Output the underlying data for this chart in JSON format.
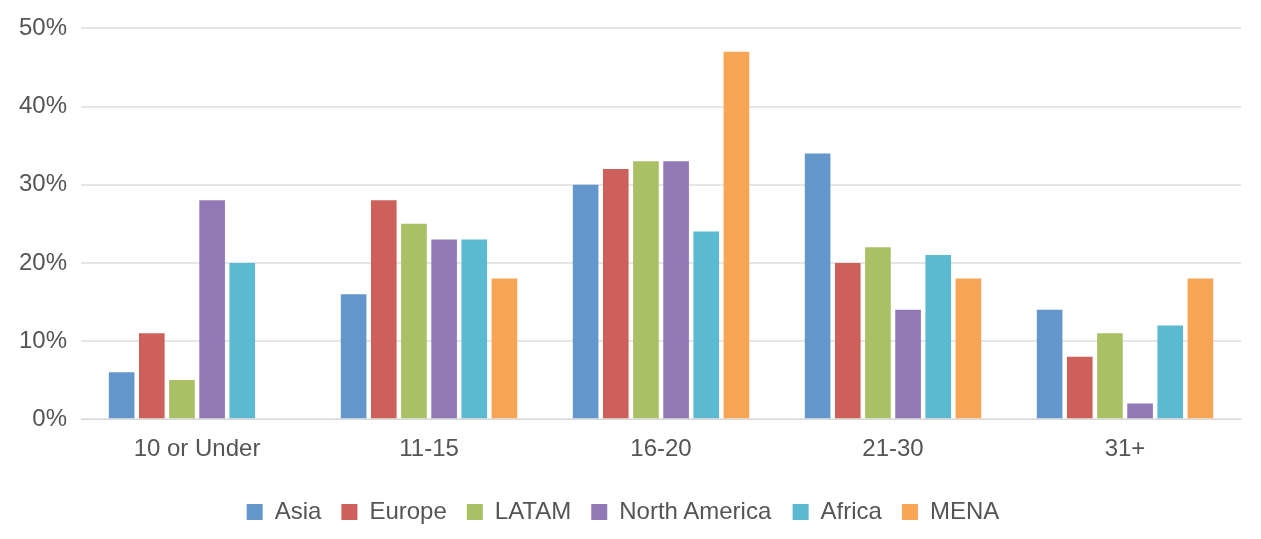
{
  "chart_data": {
    "type": "bar",
    "categories": [
      "10 or Under",
      "11-15",
      "16-20",
      "21-30",
      "31+"
    ],
    "series": [
      {
        "name": "Asia",
        "color": "#6397cb",
        "values": [
          6,
          16,
          30,
          34,
          14
        ]
      },
      {
        "name": "Europe",
        "color": "#cd605a",
        "values": [
          11,
          28,
          32,
          20,
          8
        ]
      },
      {
        "name": "LATAM",
        "color": "#a9c064",
        "values": [
          5,
          25,
          33,
          22,
          11
        ]
      },
      {
        "name": "North America",
        "color": "#9179b5",
        "values": [
          28,
          23,
          33,
          14,
          2
        ]
      },
      {
        "name": "Africa",
        "color": "#5bb9d0",
        "values": [
          20,
          23,
          24,
          21,
          12
        ]
      },
      {
        "name": "MENA",
        "color": "#f8a655",
        "values": [
          0,
          18,
          47,
          18,
          18
        ]
      }
    ],
    "ylim": [
      0,
      50
    ],
    "yticks": [
      {
        "value": 0,
        "label": "0%"
      },
      {
        "value": 10,
        "label": "10%"
      },
      {
        "value": 20,
        "label": "20%"
      },
      {
        "value": 30,
        "label": "30%"
      },
      {
        "value": 40,
        "label": "40%"
      },
      {
        "value": 50,
        "label": "50%"
      }
    ],
    "grid": "y",
    "legend": "bottom"
  }
}
